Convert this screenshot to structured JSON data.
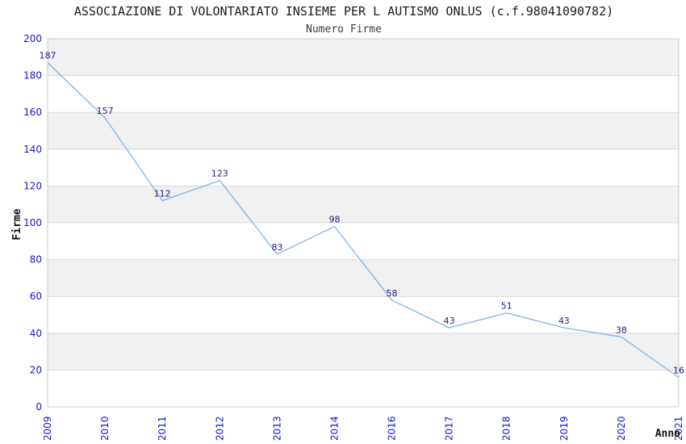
{
  "page": {
    "title": "ASSOCIAZIONE DI VOLONTARIATO INSIEME PER L AUTISMO ONLUS (c.f.98041090782)",
    "subtitle": "Numero Firme"
  },
  "chart_data": {
    "type": "line",
    "title": "ASSOCIAZIONE DI VOLONTARIATO INSIEME PER L AUTISMO ONLUS (c.f.98041090782)",
    "subtitle": "Numero Firme",
    "xlabel": "Anno",
    "ylabel": "Firme",
    "categories": [
      "2009",
      "2010",
      "2011",
      "2012",
      "2013",
      "2014",
      "2016",
      "2017",
      "2018",
      "2019",
      "2020",
      "2021"
    ],
    "values": [
      187,
      157,
      112,
      123,
      83,
      98,
      58,
      43,
      51,
      43,
      38,
      16
    ],
    "ylim": [
      0,
      200
    ],
    "ytick_step": 20,
    "grid": true,
    "legend": "none",
    "show_point_labels": true,
    "colors": {
      "line": "#82b4e8",
      "tick_label": "#1414cc",
      "data_label": "#1c1c86",
      "band": "#f0f0f0",
      "grid_line": "#d9d9d9",
      "plot_border": "#c9c9c9",
      "title": "#1a1a1a",
      "subtitle": "#3c3c3c",
      "axis_label": "#111111",
      "plot_bg": "#ffffff"
    }
  }
}
